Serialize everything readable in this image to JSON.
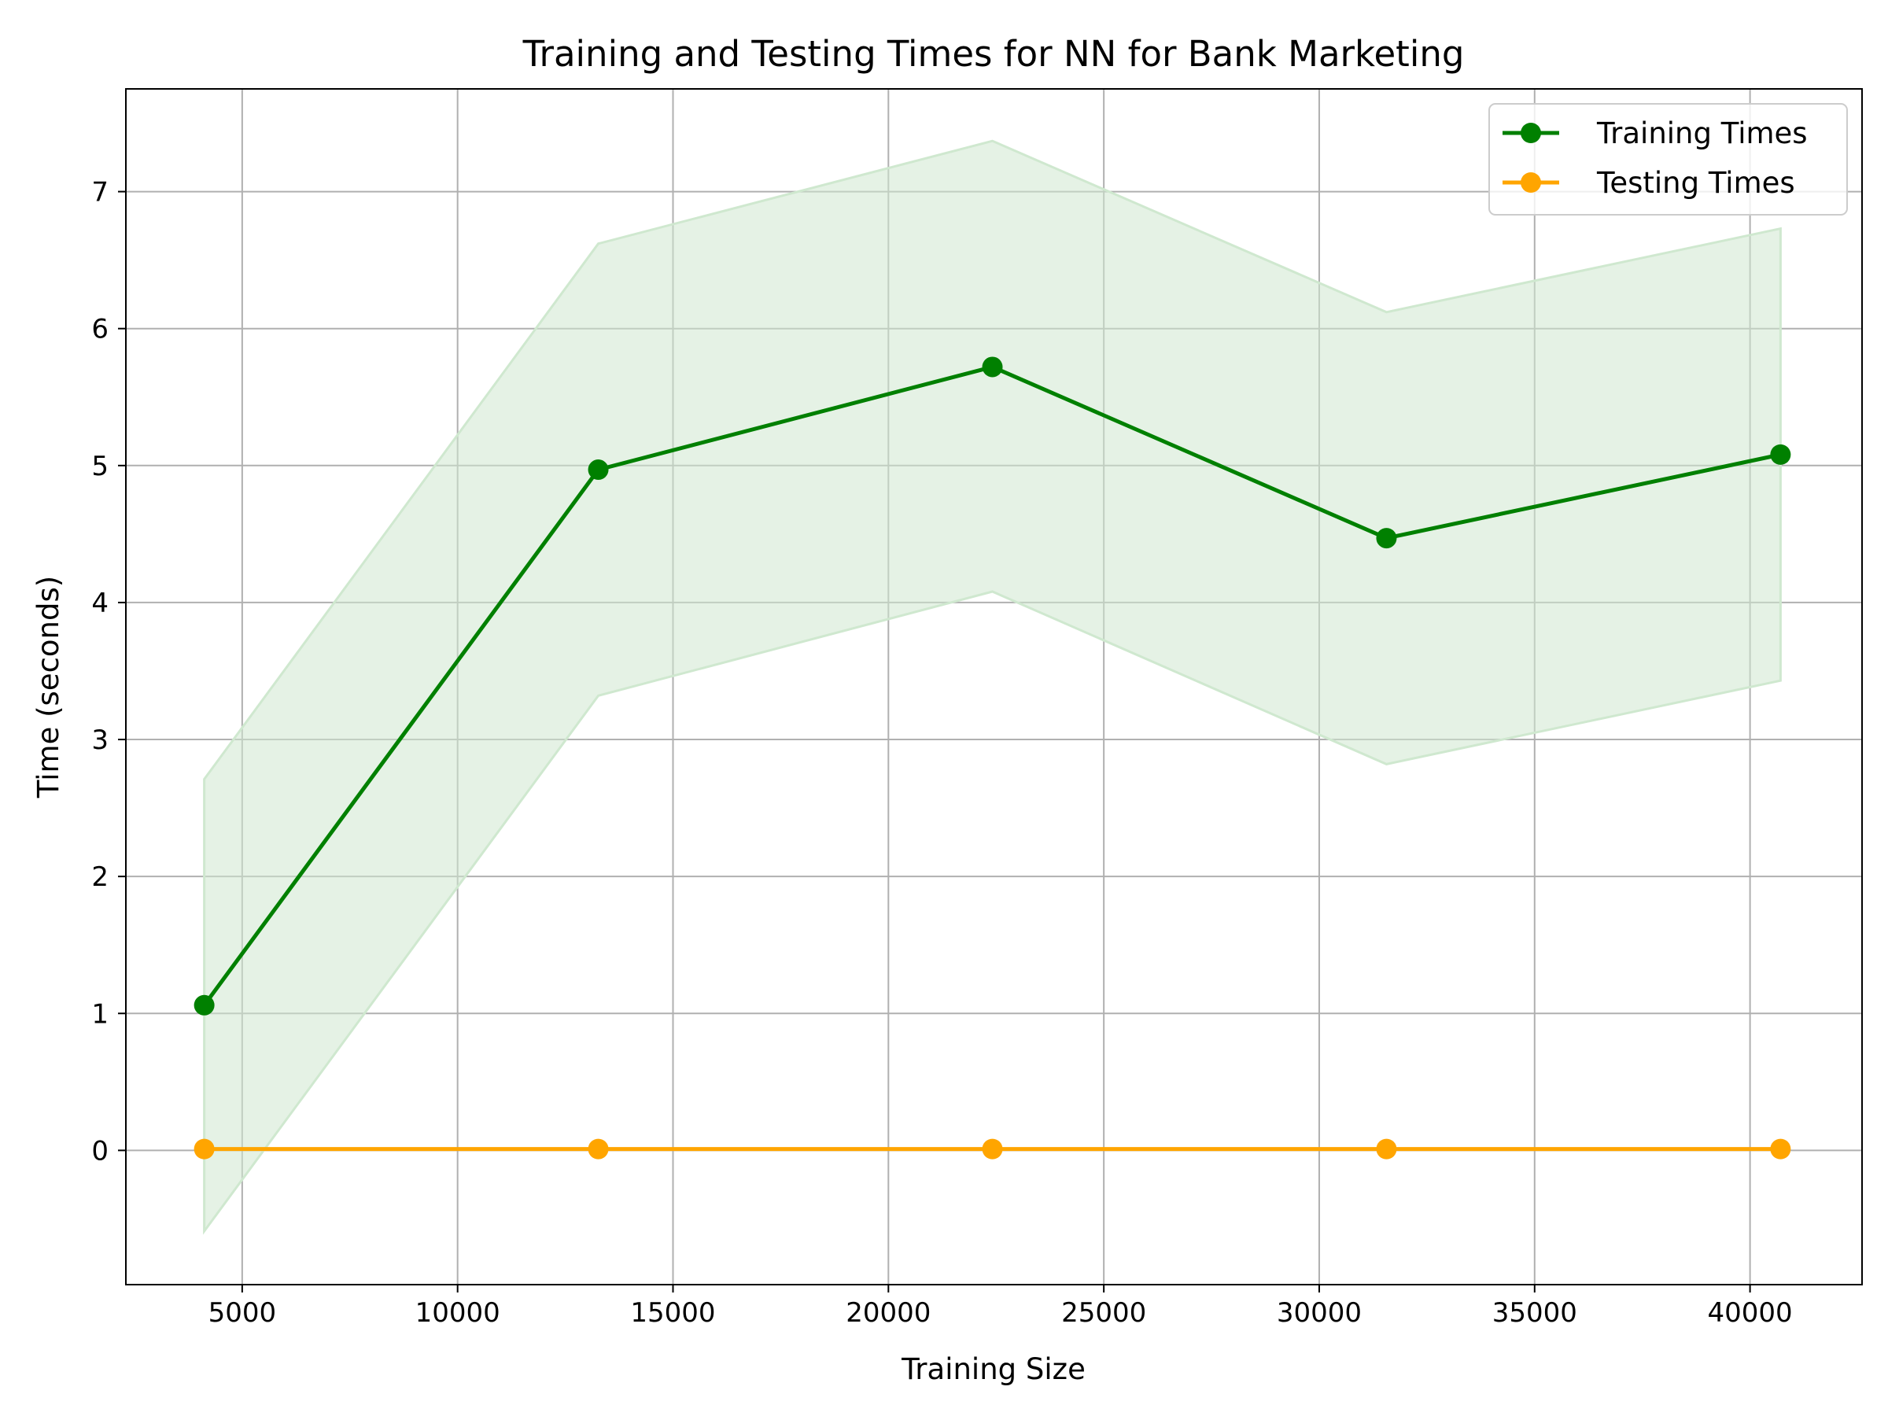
{
  "chart_data": {
    "type": "line",
    "title": "Training and Testing Times for NN for Bank Marketing",
    "xlabel": "Training Size",
    "ylabel": "Time (seconds)",
    "x": [
      4119,
      13266,
      22414,
      31561,
      40708
    ],
    "series": [
      {
        "name": "Training Times",
        "color": "#008000",
        "values": [
          1.06,
          4.97,
          5.72,
          4.47,
          5.08
        ],
        "band_lower": [
          -0.59,
          3.32,
          4.08,
          2.82,
          3.43
        ],
        "band_upper": [
          2.71,
          6.62,
          7.37,
          6.12,
          6.73
        ],
        "band_color": "#cfe8cf"
      },
      {
        "name": "Testing Times",
        "color": "#ffa500",
        "values": [
          0.01,
          0.01,
          0.01,
          0.01,
          0.01
        ]
      }
    ],
    "xlim": [
      2300,
      42600
    ],
    "ylim": [
      -0.98,
      7.75
    ],
    "xticks": [
      5000,
      10000,
      15000,
      20000,
      25000,
      30000,
      35000,
      40000
    ],
    "xtick_labels": [
      "5000",
      "10000",
      "15000",
      "20000",
      "25000",
      "30000",
      "35000",
      "40000"
    ],
    "yticks": [
      0,
      1,
      2,
      3,
      4,
      5,
      6,
      7
    ],
    "ytick_labels": [
      "0",
      "1",
      "2",
      "3",
      "4",
      "5",
      "6",
      "7"
    ],
    "grid": true,
    "legend_position": "top-right"
  }
}
